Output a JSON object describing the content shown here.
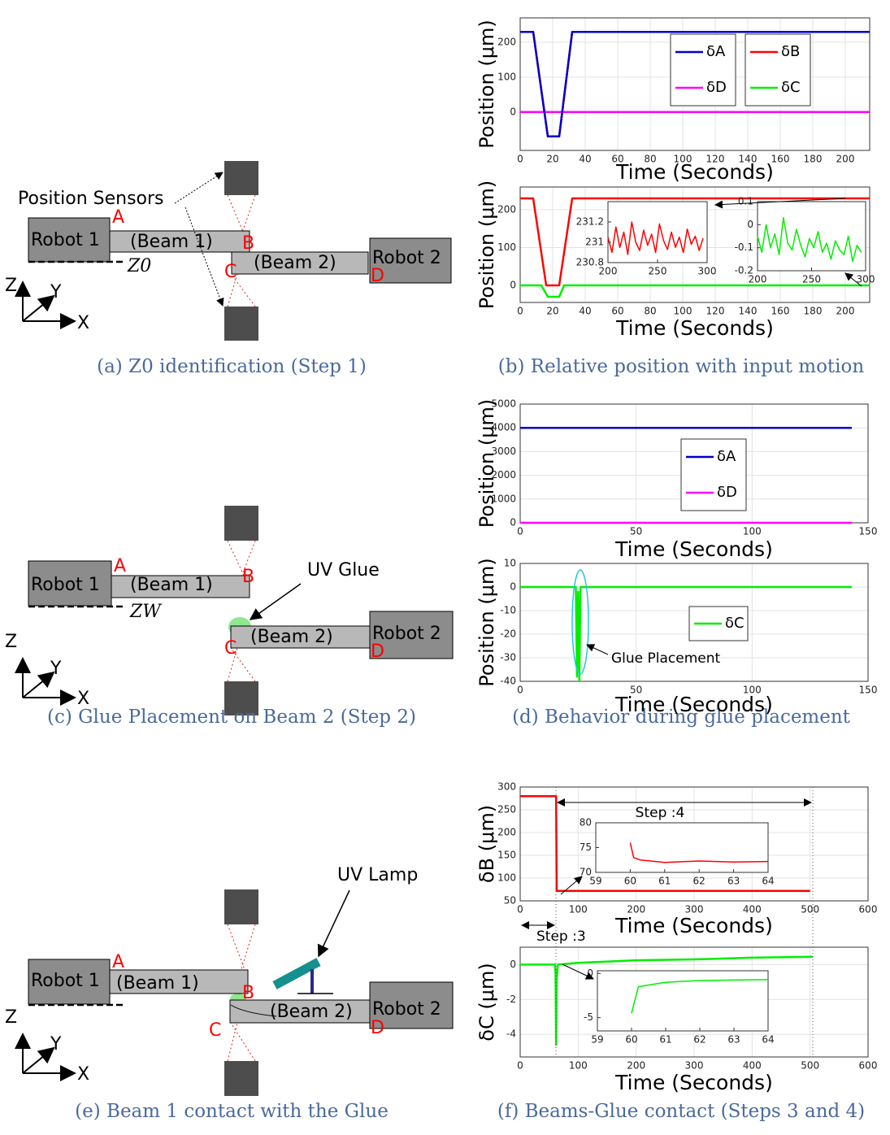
{
  "diagrams": [
    {
      "sensor_label": "Position Sensors",
      "robot1": "Robot 1",
      "beam1": "(Beam 1)",
      "beam2": "(Beam 2)",
      "robot2": "Robot 2",
      "points": [
        "A",
        "B",
        "C",
        "D"
      ],
      "reference": "Z0",
      "axes": [
        "Z",
        "Y",
        "X"
      ]
    },
    {
      "robot1": "Robot 1",
      "beam1": "(Beam 1)",
      "beam2": "(Beam 2)",
      "robot2": "Robot 2",
      "points": [
        "A",
        "B",
        "C",
        "D"
      ],
      "reference": "ZW",
      "glue_label": "UV Glue",
      "axes": [
        "Z",
        "Y",
        "X"
      ]
    },
    {
      "robot1": "Robot 1",
      "beam1": "(Beam 1)",
      "beam2": "(Beam 2)",
      "robot2": "Robot 2",
      "points": [
        "A",
        "B",
        "C",
        "D"
      ],
      "lamp_label": "UV Lamp",
      "axes": [
        "Z",
        "Y",
        "X"
      ]
    }
  ],
  "captions": [
    "(a) Z0 identification (Step 1)",
    "(b) Relative position with input motion",
    "(c) Glue Placement on Beam 2 (Step 2)",
    "(d) Behavior during glue placement",
    "(e) Beam 1 contact with the Glue",
    "(f) Beams-Glue contact (Steps 3 and 4)"
  ],
  "chart_data": [
    {
      "type": "line",
      "ylabel": "Position (μm)",
      "xlabel": "Time (Seconds)",
      "xlim": [
        0,
        215
      ],
      "ylim": [
        -110,
        270
      ],
      "xticks": [
        0,
        20,
        40,
        60,
        80,
        100,
        120,
        140,
        160,
        180,
        200
      ],
      "yticks": [
        0,
        100,
        200
      ],
      "grid": true,
      "series": [
        {
          "name": "δA",
          "color": "#0000cc",
          "x": [
            0,
            8,
            17,
            24,
            32,
            215
          ],
          "values": [
            230,
            230,
            -70,
            -70,
            230,
            230
          ]
        },
        {
          "name": "δD",
          "color": "#ff00ff",
          "x": [
            0,
            215
          ],
          "values": [
            0,
            0
          ]
        },
        {
          "name": "δB",
          "color": "#ff0000",
          "x": [
            0,
            8,
            17,
            24,
            32,
            215
          ],
          "values": [
            230,
            230,
            -70,
            -70,
            230,
            230
          ]
        },
        {
          "name": "δC",
          "color": "#00ee00",
          "x": [
            0,
            215
          ],
          "values": [
            0,
            0
          ]
        }
      ]
    },
    {
      "type": "line",
      "ylabel": "Position (μm)",
      "xlabel": "Time (Seconds)",
      "xlim": [
        0,
        215
      ],
      "ylim": [
        -45,
        260
      ],
      "xticks": [
        0,
        20,
        40,
        60,
        80,
        100,
        120,
        140,
        160,
        180,
        200
      ],
      "yticks": [
        0,
        100,
        200
      ],
      "grid": true,
      "series": [
        {
          "color": "#ff0000",
          "x": [
            0,
            8,
            16,
            24,
            32,
            215
          ],
          "values": [
            230,
            230,
            0,
            0,
            230,
            230
          ]
        },
        {
          "color": "#00ee00",
          "x": [
            0,
            13,
            17,
            24,
            27,
            215
          ],
          "values": [
            0,
            0,
            -30,
            -30,
            0,
            0
          ]
        }
      ],
      "insets": [
        {
          "xlim": [
            200,
            300
          ],
          "ylim": [
            230.8,
            231.4
          ],
          "xticks": [
            200,
            250,
            300
          ],
          "yticks": [
            230.8,
            231,
            231.2
          ],
          "series": [
            {
              "color": "#ff0000",
              "x": [
                200,
                204,
                208,
                212,
                216,
                220,
                224,
                228,
                232,
                236,
                240,
                244,
                248,
                252,
                256,
                260,
                264,
                268,
                272,
                276,
                280,
                284,
                288,
                292,
                296
              ],
              "values": [
                231.05,
                230.9,
                231.15,
                230.95,
                231.1,
                230.88,
                231.2,
                231.0,
                230.92,
                231.12,
                230.97,
                231.08,
                230.9,
                231.18,
                231.02,
                230.93,
                231.1,
                230.95,
                231.05,
                230.9,
                231.13,
                230.98,
                231.06,
                230.92,
                231.04
              ]
            }
          ]
        },
        {
          "xlim": [
            200,
            300
          ],
          "ylim": [
            -0.2,
            0.1
          ],
          "xticks": [
            200,
            250,
            300
          ],
          "yticks": [
            -0.2,
            -0.1,
            0,
            0.1
          ],
          "series": [
            {
              "color": "#00ee00",
              "x": [
                200,
                204,
                208,
                212,
                216,
                220,
                224,
                228,
                232,
                236,
                240,
                244,
                248,
                252,
                256,
                260,
                264,
                268,
                272,
                276,
                280,
                284,
                288,
                292,
                296
              ],
              "values": [
                -0.05,
                -0.12,
                0.0,
                -0.1,
                -0.04,
                -0.13,
                0.03,
                -0.08,
                -0.11,
                -0.02,
                -0.09,
                -0.14,
                -0.06,
                -0.1,
                -0.03,
                -0.12,
                -0.08,
                -0.15,
                -0.07,
                -0.11,
                -0.13,
                -0.05,
                -0.16,
                -0.09,
                -0.12
              ]
            }
          ]
        }
      ]
    },
    {
      "type": "line",
      "ylabel": "Position (μm)",
      "xlabel": "Time (Seconds)",
      "xlim": [
        0,
        150
      ],
      "ylim": [
        0,
        5000
      ],
      "xticks": [
        0,
        50,
        100,
        150
      ],
      "yticks": [
        0,
        1000,
        2000,
        3000,
        4000,
        5000
      ],
      "grid": true,
      "series": [
        {
          "name": "δA",
          "color": "#0000cc",
          "x": [
            0,
            143
          ],
          "values": [
            4000,
            4000
          ]
        },
        {
          "name": "δD",
          "color": "#ff00ff",
          "x": [
            0,
            143
          ],
          "values": [
            0,
            0
          ]
        }
      ]
    },
    {
      "type": "line",
      "ylabel": "Position (μm)",
      "xlabel": "Time (Seconds)",
      "xlim": [
        0,
        150
      ],
      "ylim": [
        -40,
        10
      ],
      "xticks": [
        0,
        50,
        100,
        150
      ],
      "yticks": [
        -40,
        -30,
        -20,
        -10,
        0,
        10
      ],
      "grid": true,
      "series": [
        {
          "name": "δC",
          "color": "#00ee00",
          "x": [
            0,
            24,
            24.5,
            25,
            25.5,
            26,
            143
          ],
          "values": [
            0,
            0,
            -38,
            -2,
            -40,
            0,
            0
          ]
        }
      ],
      "annotations": [
        "Glue Placement"
      ]
    },
    {
      "type": "line",
      "ylabel": "δB (μm)",
      "xlabel": "Time (Seconds)",
      "xlim": [
        0,
        600
      ],
      "ylim": [
        50,
        300
      ],
      "xticks": [
        0,
        100,
        200,
        300,
        400,
        500,
        600
      ],
      "yticks": [
        50,
        100,
        150,
        200,
        250,
        300
      ],
      "grid": true,
      "series": [
        {
          "color": "#ff0000",
          "x": [
            0,
            62,
            63,
            500
          ],
          "values": [
            280,
            280,
            72,
            72
          ]
        }
      ],
      "insets": [
        {
          "xlim": [
            59,
            64
          ],
          "ylim": [
            70,
            80
          ],
          "xticks": [
            59,
            60,
            61,
            62,
            63,
            64
          ],
          "yticks": [
            70,
            75,
            80
          ],
          "series": [
            {
              "color": "#ff0000",
              "x": [
                60,
                60.1,
                60.3,
                61,
                62,
                63,
                64
              ],
              "values": [
                76,
                73,
                72.5,
                72,
                72.3,
                72.1,
                72.2
              ]
            }
          ]
        }
      ],
      "annotations": [
        "Step :4",
        "Step :3"
      ]
    },
    {
      "type": "line",
      "ylabel": "δC (μm)",
      "xlabel": "Time (Seconds)",
      "xlim": [
        0,
        600
      ],
      "ylim": [
        -5.3,
        1
      ],
      "xticks": [
        0,
        100,
        200,
        300,
        400,
        500,
        600
      ],
      "yticks": [
        -4,
        -2,
        0
      ],
      "grid": true,
      "series": [
        {
          "color": "#00ee00",
          "x": [
            0,
            60,
            61,
            62,
            63,
            65,
            100,
            200,
            300,
            400,
            505
          ],
          "values": [
            0,
            0,
            -0.5,
            -4.6,
            -0.8,
            0,
            0.1,
            0.25,
            0.3,
            0.4,
            0.45
          ]
        }
      ],
      "insets": [
        {
          "xlim": [
            59,
            64
          ],
          "ylim": [
            -6.5,
            0.3
          ],
          "xticks": [
            59,
            60,
            61,
            62,
            63,
            64
          ],
          "yticks": [
            -5,
            0
          ],
          "series": [
            {
              "color": "#00ee00",
              "x": [
                60,
                60.2,
                61,
                62,
                63,
                64
              ],
              "values": [
                -4.5,
                -1.5,
                -1,
                -0.8,
                -0.75,
                -0.7
              ]
            }
          ]
        }
      ]
    }
  ]
}
